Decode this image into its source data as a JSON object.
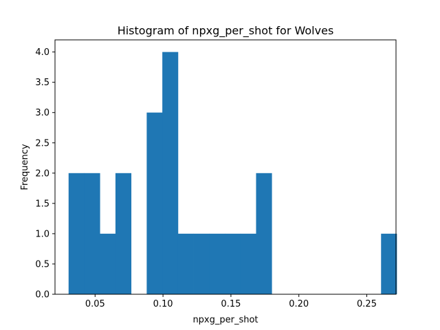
{
  "chart_data": {
    "type": "histogram",
    "title": "Histogram of npxg_per_shot for Wolves",
    "xlabel": "npxg_per_shot",
    "ylabel": "Frequency",
    "xlim": [
      0.0205,
      0.2715
    ],
    "ylim": [
      0,
      4.2
    ],
    "bins": {
      "start": 0.0305,
      "width": 0.0115,
      "counts": [
        2,
        2,
        1,
        2,
        0,
        3,
        4,
        1,
        1,
        1,
        1,
        1,
        2,
        0,
        0,
        0,
        0,
        0,
        0,
        0,
        1
      ]
    },
    "x_ticks": [
      0.05,
      0.1,
      0.15,
      0.2,
      0.25
    ],
    "x_tick_labels": [
      "0.05",
      "0.10",
      "0.15",
      "0.20",
      "0.25"
    ],
    "y_ticks": [
      0.0,
      0.5,
      1.0,
      1.5,
      2.0,
      2.5,
      3.0,
      3.5,
      4.0
    ],
    "y_tick_labels": [
      "0.0",
      "0.5",
      "1.0",
      "1.5",
      "2.0",
      "2.5",
      "3.0",
      "3.5",
      "4.0"
    ],
    "bar_color": "#1f77b4",
    "grid": false,
    "legend": false
  }
}
